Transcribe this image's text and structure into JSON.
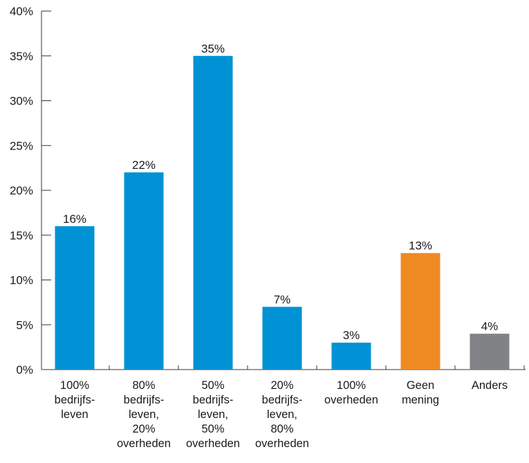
{
  "chart_data": {
    "type": "bar",
    "categories": [
      [
        "100%",
        "bedrijfs-",
        "leven"
      ],
      [
        "80%",
        "bedrijfs-",
        "leven,",
        "20%",
        "overheden"
      ],
      [
        "50%",
        "bedrijfs-",
        "leven,",
        "50%",
        "overheden"
      ],
      [
        "20%",
        "bedrijfs-",
        "leven,",
        "80%",
        "overheden"
      ],
      [
        "100%",
        "overheden"
      ],
      [
        "Geen",
        "mening"
      ],
      [
        "Anders"
      ]
    ],
    "values": [
      16,
      22,
      35,
      7,
      3,
      13,
      4
    ],
    "value_labels": [
      "16%",
      "22%",
      "35%",
      "7%",
      "3%",
      "13%",
      "4%"
    ],
    "bar_colors": [
      "#0092d4",
      "#0092d4",
      "#0092d4",
      "#0092d4",
      "#0092d4",
      "#f08a23",
      "#808285"
    ],
    "ylim": [
      0,
      40
    ],
    "yticks": [
      0,
      5,
      10,
      15,
      20,
      25,
      30,
      35,
      40
    ],
    "ytick_labels": [
      "0%",
      "5%",
      "10%",
      "15%",
      "20%",
      "25%",
      "30%",
      "35%",
      "40%"
    ],
    "title": "",
    "xlabel": "",
    "ylabel": "",
    "grid": false,
    "legend": "none",
    "axis_color": "#333333"
  }
}
